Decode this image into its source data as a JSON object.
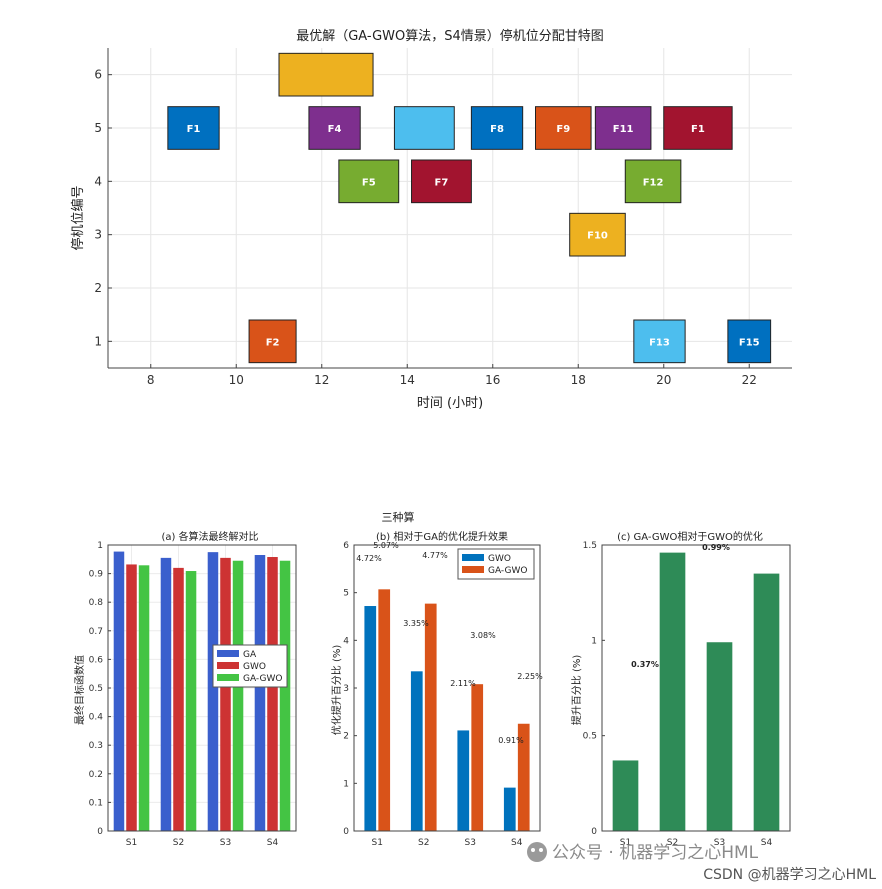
{
  "chart_data": [
    {
      "type": "gantt",
      "title": "最优解（GA-GWO算法，S4情景）停机位分配甘特图",
      "xlabel": "时间 (小时)",
      "ylabel": "停机位编号",
      "xlim": [
        7,
        23
      ],
      "ylim": [
        0.5,
        6.5
      ],
      "xticks": [
        8,
        10,
        12,
        14,
        16,
        18,
        20,
        22
      ],
      "yticks": [
        1,
        2,
        3,
        4,
        5,
        6
      ],
      "grid": true,
      "bars": [
        {
          "label": "F1",
          "start": 8.4,
          "end": 9.6,
          "gate": 5,
          "color": "#0070c0"
        },
        {
          "label": "F2",
          "start": 10.3,
          "end": 11.4,
          "gate": 1,
          "color": "#d95319"
        },
        {
          "label": "",
          "start": 11.0,
          "end": 13.2,
          "gate": 6,
          "color": "#edb120"
        },
        {
          "label": "F4",
          "start": 11.7,
          "end": 12.9,
          "gate": 5,
          "color": "#7e2f8e"
        },
        {
          "label": "F5",
          "start": 12.4,
          "end": 13.8,
          "gate": 4,
          "color": "#77ac30"
        },
        {
          "label": "",
          "start": 13.7,
          "end": 15.1,
          "gate": 5,
          "color": "#4dbeee"
        },
        {
          "label": "F7",
          "start": 14.1,
          "end": 15.5,
          "gate": 4,
          "color": "#a2142f"
        },
        {
          "label": "F8",
          "start": 15.5,
          "end": 16.7,
          "gate": 5,
          "color": "#0070c0"
        },
        {
          "label": "F9",
          "start": 17.0,
          "end": 18.3,
          "gate": 5,
          "color": "#d95319"
        },
        {
          "label": "F10",
          "start": 17.8,
          "end": 19.1,
          "gate": 3,
          "color": "#edb120"
        },
        {
          "label": "F11",
          "start": 18.4,
          "end": 19.7,
          "gate": 5,
          "color": "#7e2f8e"
        },
        {
          "label": "F12",
          "start": 19.1,
          "end": 20.4,
          "gate": 4,
          "color": "#77ac30"
        },
        {
          "label": "F13",
          "start": 19.3,
          "end": 20.5,
          "gate": 1,
          "color": "#4dbeee"
        },
        {
          "label": "F1",
          "start": 20.0,
          "end": 21.6,
          "gate": 5,
          "color": "#a2142f"
        },
        {
          "label": "F15",
          "start": 21.5,
          "end": 22.5,
          "gate": 1,
          "color": "#0070c0"
        }
      ]
    },
    {
      "type": "bar",
      "title": "(a) 各算法最终解对比",
      "ylabel": "最终目标函数值",
      "categories": [
        "S1",
        "S2",
        "S3",
        "S4"
      ],
      "ylim": [
        0,
        1
      ],
      "yticks": [
        "0",
        "0.1",
        "0.2",
        "0.3",
        "0.4",
        "0.5",
        "0.6",
        "0.7",
        "0.8",
        "0.9",
        "1"
      ],
      "legend_position": "center-right",
      "series": [
        {
          "name": "GA",
          "values": [
            0.977,
            0.955,
            0.975,
            0.965
          ],
          "color": "#3a5fcd"
        },
        {
          "name": "GWO",
          "values": [
            0.932,
            0.92,
            0.955,
            0.958
          ],
          "color": "#cd3333"
        },
        {
          "name": "GA-GWO",
          "values": [
            0.929,
            0.909,
            0.945,
            0.945
          ],
          "color": "#44c444"
        }
      ]
    },
    {
      "type": "bar",
      "title": "(b) 相对于GA的优化提升效果",
      "ylabel": "优化提升百分比 (%)",
      "categories": [
        "S1",
        "S2",
        "S3",
        "S4"
      ],
      "ylim": [
        0,
        6
      ],
      "yticks": [
        "0",
        "1",
        "2",
        "3",
        "4",
        "5",
        "6"
      ],
      "legend_position": "top-right",
      "series": [
        {
          "name": "GWO",
          "values": [
            4.72,
            3.35,
            2.11,
            0.91
          ],
          "color": "#0072bd"
        },
        {
          "name": "GA-GWO",
          "values": [
            5.07,
            4.77,
            3.08,
            2.25
          ],
          "color": "#d95319"
        }
      ],
      "data_labels": [
        "4.72%",
        "5.07%",
        "3.35%",
        "4.77%",
        "2.11%",
        "3.08%",
        "0.91%",
        "2.25%"
      ]
    },
    {
      "type": "bar",
      "title": "(c) GA-GWO相对于GWO的优化",
      "ylabel": "提升百分比 (%)",
      "categories": [
        "S1",
        "S2",
        "S3",
        "S4"
      ],
      "ylim": [
        0,
        1.5
      ],
      "yticks": [
        "0",
        "0.5",
        "1",
        "1.5"
      ],
      "series": [
        {
          "values": [
            0.37,
            1.46,
            0.99,
            1.35
          ],
          "color": "#2e8b57"
        }
      ],
      "data_labels": [
        "0.37%",
        "0.99%"
      ]
    }
  ],
  "figure": {
    "suptitle": "三种算"
  },
  "watermark": {
    "line1": "公众号 · 机器学习之心HML",
    "line2": "CSDN @机器学习之心HML"
  }
}
